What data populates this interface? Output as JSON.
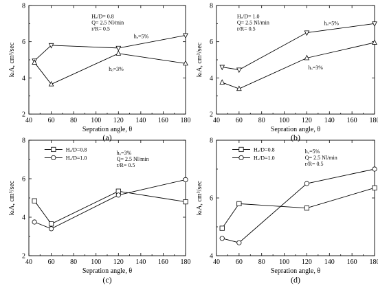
{
  "chart_data": [
    {
      "type": "line",
      "panel_label": "(a)",
      "xlabel": "Sepration angle, θ",
      "ylabel": "kₗA, cm³/sec",
      "xlim": [
        40,
        180
      ],
      "ylim": [
        2,
        8
      ],
      "xticks": [
        "40",
        "60",
        "80",
        "100",
        "120",
        "140",
        "160",
        "180"
      ],
      "yticks": [
        "2",
        "4",
        "6",
        "8"
      ],
      "annotations": [
        "Hₒ/D= 0.8",
        "Q= 2.5 Nl/min",
        "r/R= 0.5"
      ],
      "legend": [],
      "series": [
        {
          "name": "hₒ=5%",
          "marker": "triangle-down",
          "x": [
            45,
            60,
            120,
            180
          ],
          "values": [
            4.95,
            5.8,
            5.65,
            6.35
          ]
        },
        {
          "name": "hₒ=3%",
          "marker": "triangle-up",
          "x": [
            45,
            60,
            120,
            180
          ],
          "values": [
            4.85,
            3.65,
            5.35,
            4.8
          ]
        }
      ]
    },
    {
      "type": "line",
      "panel_label": "(b)",
      "xlabel": "Sepration angle, θ",
      "ylabel": "kₗA, cm³/sec",
      "xlim": [
        40,
        180
      ],
      "ylim": [
        2,
        8
      ],
      "xticks": [
        "40",
        "60",
        "80",
        "100",
        "120",
        "140",
        "160",
        "180"
      ],
      "yticks": [
        "2",
        "4",
        "6",
        "8"
      ],
      "annotations": [
        "Hₒ/D= 1.0",
        "Q= 2.5 Nl/min",
        "r/R= 0.5"
      ],
      "legend": [],
      "series": [
        {
          "name": "hₒ=5%",
          "marker": "triangle-down",
          "x": [
            45,
            60,
            120,
            180
          ],
          "values": [
            4.6,
            4.45,
            6.5,
            7.0
          ]
        },
        {
          "name": "hₒ=3%",
          "marker": "triangle-up",
          "x": [
            45,
            60,
            120,
            180
          ],
          "values": [
            3.75,
            3.4,
            5.1,
            5.95
          ]
        }
      ]
    },
    {
      "type": "line",
      "panel_label": "(c)",
      "xlabel": "Sepration angle, θ",
      "ylabel": "kₗA, cm³/sec",
      "xlim": [
        40,
        180
      ],
      "ylim": [
        2,
        8
      ],
      "xticks": [
        "40",
        "60",
        "80",
        "100",
        "120",
        "140",
        "160",
        "180"
      ],
      "yticks": [
        "2",
        "4",
        "6",
        "8"
      ],
      "annotations": [
        "hₒ=3%",
        "Q= 2.5 Nl/min",
        "r/R= 0.5"
      ],
      "legend": [
        {
          "label": "Hₒ/D=0.8",
          "marker": "square"
        },
        {
          "label": "Hₒ/D=1.0",
          "marker": "circle"
        }
      ],
      "series": [
        {
          "name": "Hₒ/D=0.8",
          "marker": "square",
          "x": [
            45,
            60,
            120,
            180
          ],
          "values": [
            4.85,
            3.65,
            5.35,
            4.8
          ]
        },
        {
          "name": "Hₒ/D=1.0",
          "marker": "circle",
          "x": [
            45,
            60,
            120,
            180
          ],
          "values": [
            3.75,
            3.4,
            5.15,
            5.95
          ]
        }
      ]
    },
    {
      "type": "line",
      "panel_label": "(d)",
      "xlabel": "Sepration angle, θ",
      "ylabel": "kₗA, cm³/sec",
      "xlim": [
        40,
        180
      ],
      "ylim": [
        4,
        8
      ],
      "xticks": [
        "40",
        "60",
        "80",
        "100",
        "120",
        "140",
        "160",
        "180"
      ],
      "yticks": [
        "4",
        "6",
        "8"
      ],
      "annotations": [
        "hₒ=5%",
        "Q= 2.5 Nl/min",
        "r/R= 0.5"
      ],
      "legend": [
        {
          "label": "Hₒ/D=0.8",
          "marker": "square"
        },
        {
          "label": "Hₒ/D=1.0",
          "marker": "circle"
        }
      ],
      "series": [
        {
          "name": "Hₒ/D=0.8",
          "marker": "square",
          "x": [
            45,
            60,
            120,
            180
          ],
          "values": [
            4.95,
            5.8,
            5.65,
            6.35
          ]
        },
        {
          "name": "Hₒ/D=1.0",
          "marker": "circle",
          "x": [
            45,
            60,
            120,
            180
          ],
          "values": [
            4.6,
            4.45,
            6.5,
            7.0
          ]
        }
      ]
    }
  ]
}
